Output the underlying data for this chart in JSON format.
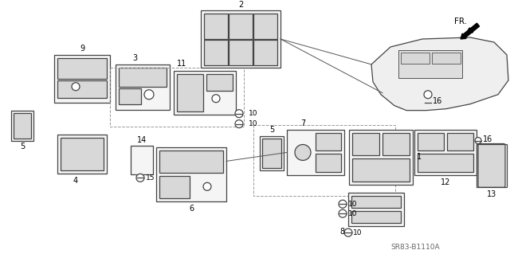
{
  "bg_color": "#ffffff",
  "diagram_code": "SR83-B1110A",
  "fr_label": "FR.",
  "ec": "#444444",
  "lw": 0.9
}
